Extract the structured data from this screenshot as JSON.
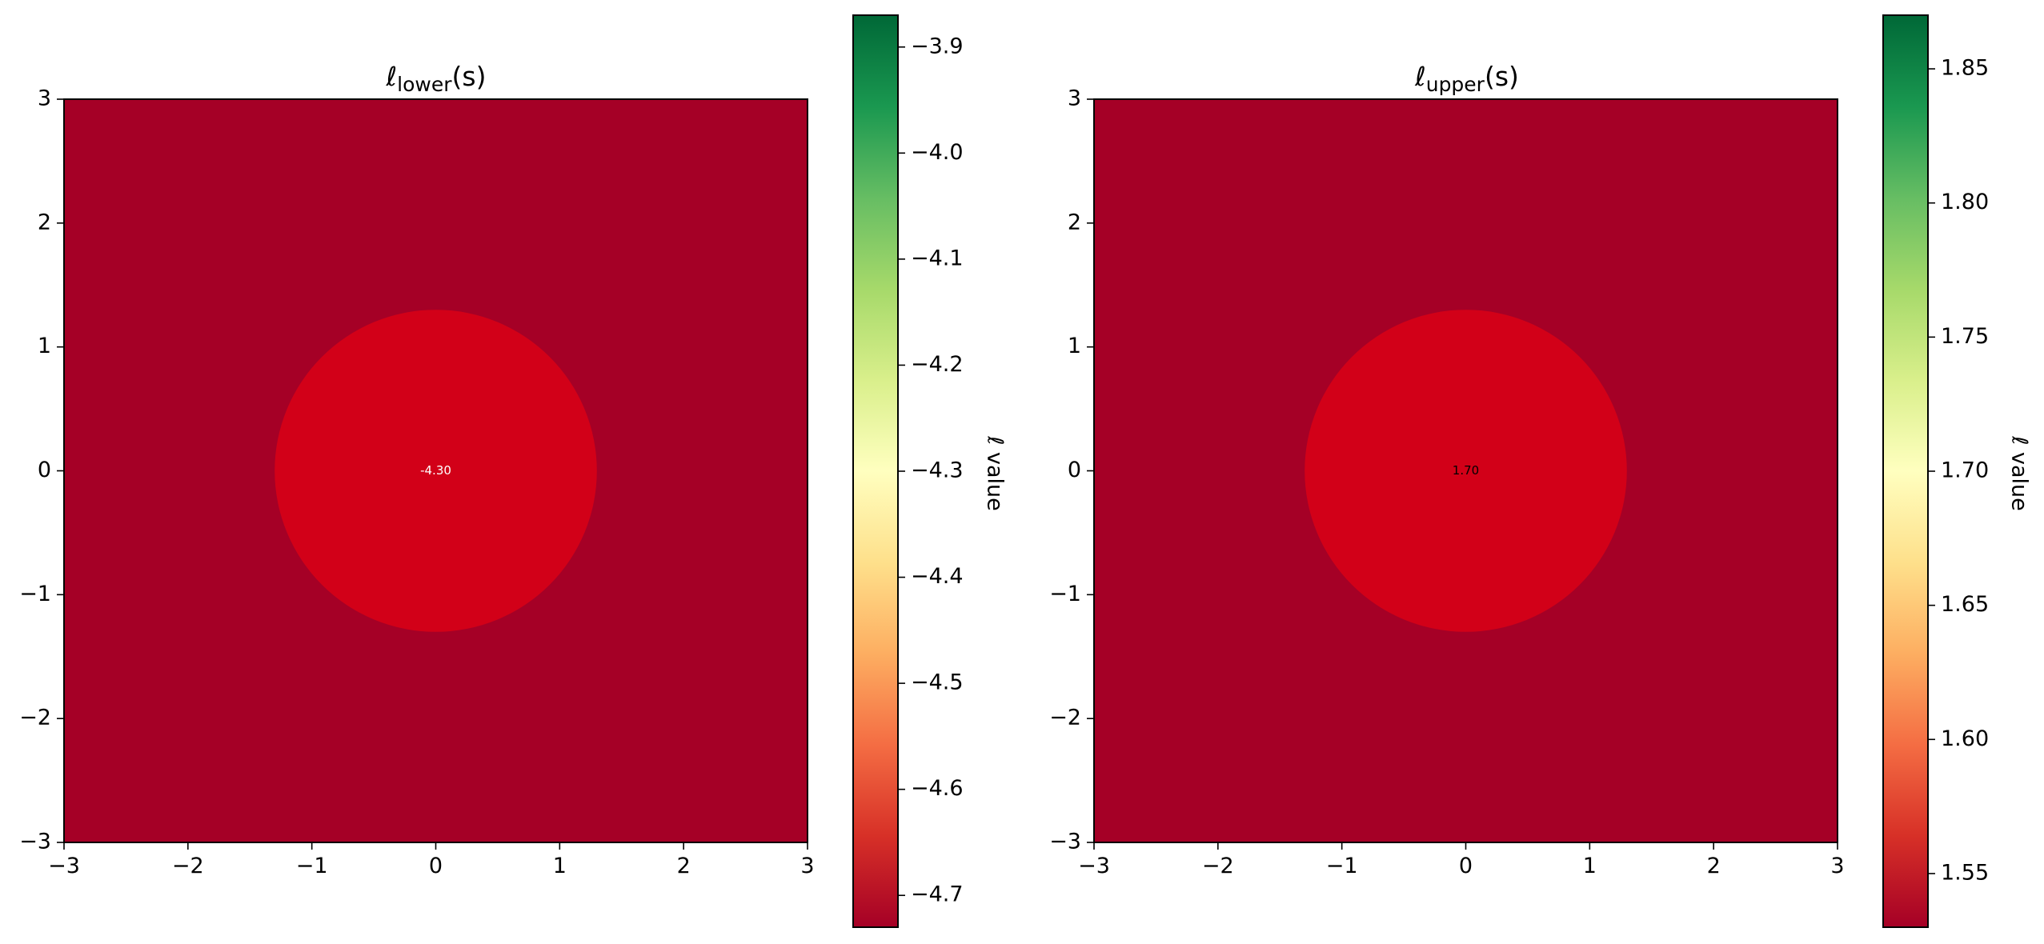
{
  "chart_data": [
    {
      "type": "heatmap",
      "title_symbol": "ℓ",
      "title_subscript": "lower",
      "title_arg": "(s)",
      "xlim": [
        -3,
        3
      ],
      "ylim": [
        -3,
        3
      ],
      "x_ticks": [
        -3,
        -2,
        -1,
        0,
        1,
        2,
        3
      ],
      "y_ticks": [
        -3,
        -2,
        -1,
        0,
        1,
        2,
        3
      ],
      "x_tick_labels": [
        "−3",
        "−2",
        "−1",
        "0",
        "1",
        "2",
        "3"
      ],
      "y_tick_labels": [
        "−3",
        "−2",
        "−1",
        "0",
        "1",
        "2",
        "3"
      ],
      "grid": false,
      "regions": [
        {
          "shape": "background",
          "value": -4.73,
          "color": "#a50026"
        },
        {
          "shape": "disc",
          "center": [
            0,
            0
          ],
          "radius": 1.3,
          "value": -4.3,
          "color": "#d20018",
          "label": "-4.30",
          "label_color": "#ffffff"
        }
      ],
      "colorbar": {
        "label": "ℓ value",
        "colormap": "RdYlGn",
        "range": [
          -4.73,
          -3.87
        ],
        "ticks": [
          -3.9,
          -4.0,
          -4.1,
          -4.2,
          -4.3,
          -4.4,
          -4.5,
          -4.6,
          -4.7
        ],
        "tick_labels": [
          "−3.9",
          "−4.0",
          "−4.1",
          "−4.2",
          "−4.3",
          "−4.4",
          "−4.5",
          "−4.6",
          "−4.7"
        ]
      }
    },
    {
      "type": "heatmap",
      "title_symbol": "ℓ",
      "title_subscript": "upper",
      "title_arg": "(s)",
      "xlim": [
        -3,
        3
      ],
      "ylim": [
        -3,
        3
      ],
      "x_ticks": [
        -3,
        -2,
        -1,
        0,
        1,
        2,
        3
      ],
      "y_ticks": [
        -3,
        -2,
        -1,
        0,
        1,
        2,
        3
      ],
      "x_tick_labels": [
        "−3",
        "−2",
        "−1",
        "0",
        "1",
        "2",
        "3"
      ],
      "y_tick_labels": [
        "−3",
        "−2",
        "−1",
        "0",
        "1",
        "2",
        "3"
      ],
      "grid": false,
      "regions": [
        {
          "shape": "background",
          "value": 1.53,
          "color": "#a50026"
        },
        {
          "shape": "disc",
          "center": [
            0,
            0
          ],
          "radius": 1.3,
          "value": 1.7,
          "color": "#d20018",
          "label": "1.70",
          "label_color": "#000000"
        }
      ],
      "colorbar": {
        "label": "ℓ value",
        "colormap": "RdYlGn",
        "range": [
          1.53,
          1.87
        ],
        "ticks": [
          1.85,
          1.8,
          1.75,
          1.7,
          1.65,
          1.6,
          1.55
        ],
        "tick_labels": [
          "1.85",
          "1.80",
          "1.75",
          "1.70",
          "1.65",
          "1.60",
          "1.55"
        ]
      }
    }
  ]
}
